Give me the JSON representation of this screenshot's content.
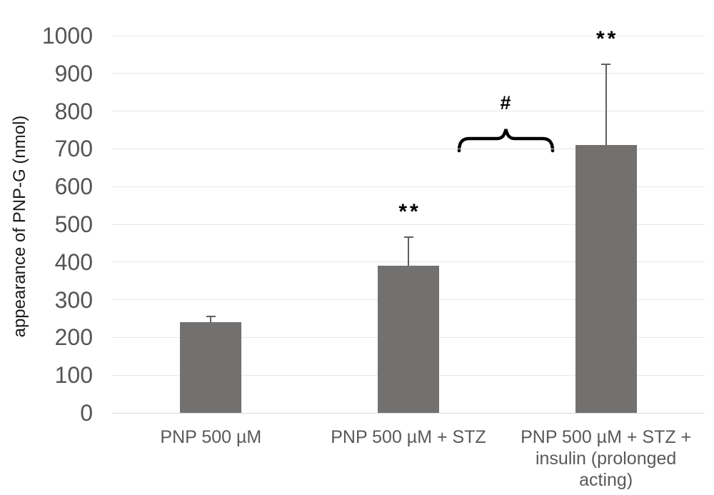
{
  "chart_data": {
    "type": "bar",
    "title": "",
    "xlabel": "",
    "ylabel": "appearance of PNP-G (nmol)",
    "ylim": [
      0,
      1000
    ],
    "ytick_step": 100,
    "grid": true,
    "legend_position": "none",
    "categories": [
      "PNP 500 µM",
      "PNP 500 µM + STZ",
      "PNP 500 µM + STZ +\ninsulin (prolonged\nacting)"
    ],
    "values": [
      240,
      390,
      710
    ],
    "errors_upper": [
      16,
      76,
      214
    ],
    "bar_color": "#737070",
    "significance_labels": [
      "",
      "**",
      "**"
    ],
    "comparison": {
      "symbol": "#",
      "between_categories": [
        "PNP 500 µM + STZ",
        "PNP 500 µM + STZ + insulin (prolonged acting)"
      ]
    }
  },
  "styles": {
    "tick_label_color": "#545454",
    "category_label_color": "#595959",
    "axis_title_color": "#1a1a1a",
    "grid_color": "#e7e7e7",
    "error_bar_color": "#5f5f5f",
    "annotation_color": "#000000",
    "background": "#ffffff"
  }
}
